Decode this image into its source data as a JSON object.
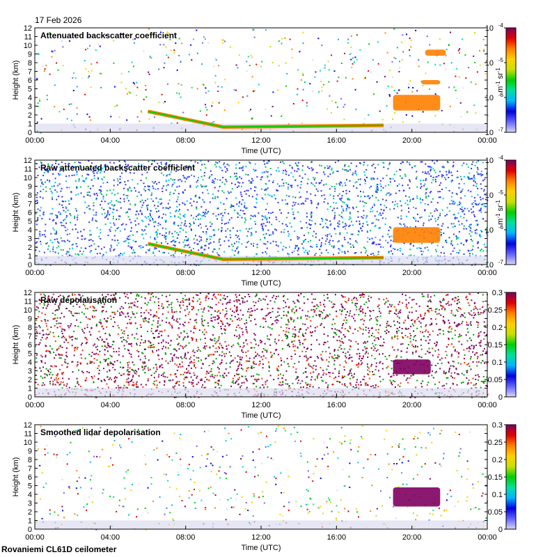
{
  "header": {
    "date": "17 Feb 2026"
  },
  "footer": {
    "instrument": "Rovaniemi CL61D ceilometer"
  },
  "chart_data": [
    {
      "type": "heatmap",
      "title": "Attenuated backscatter coefficient",
      "xlabel": "Time (UTC)",
      "ylabel": "Height (km)",
      "xticks": [
        "00:00",
        "04:00",
        "08:00",
        "12:00",
        "16:00",
        "20:00",
        "00:00"
      ],
      "xlim": [
        0,
        24
      ],
      "ylim": [
        0,
        12
      ],
      "yticks": [
        0,
        1,
        2,
        3,
        4,
        5,
        6,
        7,
        8,
        9,
        10,
        11,
        12
      ],
      "colorbar": {
        "scale": "log",
        "range": [
          1e-07,
          0.0001
        ],
        "ticks": [
          {
            "base": "10",
            "exp": "-4",
            "value": 0.0001
          },
          {
            "base": "10",
            "exp": "-5",
            "value": 1e-05
          },
          {
            "base": "10",
            "exp": "-6",
            "value": 1e-06
          },
          {
            "base": "10",
            "exp": "-7",
            "value": 1e-07
          }
        ],
        "unit_parts": [
          {
            "text": "m",
            "sup": false
          },
          {
            "text": "-1",
            "sup": true
          },
          {
            "text": " sr",
            "sup": false
          },
          {
            "text": "-1",
            "sup": true
          }
        ]
      },
      "features": {
        "noise": "sparse",
        "low_cloud": [
          [
            6.0,
            2.4
          ],
          [
            10.0,
            0.6
          ],
          [
            18.5,
            0.8
          ]
        ],
        "cloud_blobs": [
          [
            19.0,
            21.5,
            2.5,
            4.3
          ],
          [
            20.5,
            21.5,
            5.5,
            6.0
          ],
          [
            20.7,
            21.8,
            8.8,
            9.5
          ]
        ]
      }
    },
    {
      "type": "heatmap",
      "title": "Raw attenuated backscatter coefficient",
      "xlabel": "Time (UTC)",
      "ylabel": "Height (km)",
      "xticks": [
        "00:00",
        "04:00",
        "08:00",
        "12:00",
        "16:00",
        "20:00",
        "00:00"
      ],
      "xlim": [
        0,
        24
      ],
      "ylim": [
        0,
        12
      ],
      "yticks": [
        0,
        1,
        2,
        3,
        4,
        5,
        6,
        7,
        8,
        9,
        10,
        11,
        12
      ],
      "colorbar": {
        "scale": "log",
        "range": [
          1e-07,
          0.0001
        ],
        "ticks": [
          {
            "base": "10",
            "exp": "-4",
            "value": 0.0001
          },
          {
            "base": "10",
            "exp": "-5",
            "value": 1e-05
          },
          {
            "base": "10",
            "exp": "-6",
            "value": 1e-06
          },
          {
            "base": "10",
            "exp": "-7",
            "value": 1e-07
          }
        ],
        "unit_parts": [
          {
            "text": "m",
            "sup": false
          },
          {
            "text": "-1",
            "sup": true
          },
          {
            "text": " sr",
            "sup": false
          },
          {
            "text": "-1",
            "sup": true
          }
        ]
      },
      "features": {
        "noise": "dense",
        "low_cloud": [
          [
            6.0,
            2.4
          ],
          [
            10.0,
            0.6
          ],
          [
            18.5,
            0.8
          ]
        ],
        "cloud_blobs": [
          [
            19.0,
            21.5,
            2.5,
            4.3
          ]
        ]
      }
    },
    {
      "type": "heatmap",
      "title": "Raw depolarisation",
      "xlabel": "Time (UTC)",
      "ylabel": "Height (km)",
      "xticks": [
        "00:00",
        "04:00",
        "08:00",
        "12:00",
        "16:00",
        "20:00",
        "00:00"
      ],
      "xlim": [
        0,
        24
      ],
      "ylim": [
        0,
        12
      ],
      "yticks": [
        0,
        1,
        2,
        3,
        4,
        5,
        6,
        7,
        8,
        9,
        10,
        11,
        12
      ],
      "colorbar": {
        "scale": "linear",
        "range": [
          0,
          0.3
        ],
        "ticks": [
          {
            "label": "0.3",
            "value": 0.3
          },
          {
            "label": "0.25",
            "value": 0.25
          },
          {
            "label": "0.2",
            "value": 0.2
          },
          {
            "label": "0.15",
            "value": 0.15
          },
          {
            "label": "0.1",
            "value": 0.1
          },
          {
            "label": "0.05",
            "value": 0.05
          },
          {
            "label": "0",
            "value": 0
          }
        ]
      },
      "features": {
        "noise": "salt-pepper",
        "cloud_blobs": [
          [
            19.0,
            21.0,
            2.6,
            4.3
          ]
        ]
      }
    },
    {
      "type": "heatmap",
      "title": "Smoothed lidar depolarisation",
      "xlabel": "Time (UTC)",
      "ylabel": "Height (km)",
      "xticks": [
        "00:00",
        "04:00",
        "08:00",
        "12:00",
        "16:00",
        "20:00",
        "00:00"
      ],
      "xlim": [
        0,
        24
      ],
      "ylim": [
        0,
        12
      ],
      "yticks": [
        0,
        1,
        2,
        3,
        4,
        5,
        6,
        7,
        8,
        9,
        10,
        11,
        12
      ],
      "colorbar": {
        "scale": "linear",
        "range": [
          0,
          0.3
        ],
        "ticks": [
          {
            "label": "0.3",
            "value": 0.3
          },
          {
            "label": "0.25",
            "value": 0.25
          },
          {
            "label": "0.2",
            "value": 0.2
          },
          {
            "label": "0.15",
            "value": 0.15
          },
          {
            "label": "0.1",
            "value": 0.1
          },
          {
            "label": "0.05",
            "value": 0.05
          },
          {
            "label": "0",
            "value": 0
          }
        ]
      },
      "features": {
        "noise": "sparse",
        "cloud_blobs": [
          [
            19.0,
            21.5,
            2.6,
            4.8
          ]
        ]
      }
    }
  ]
}
